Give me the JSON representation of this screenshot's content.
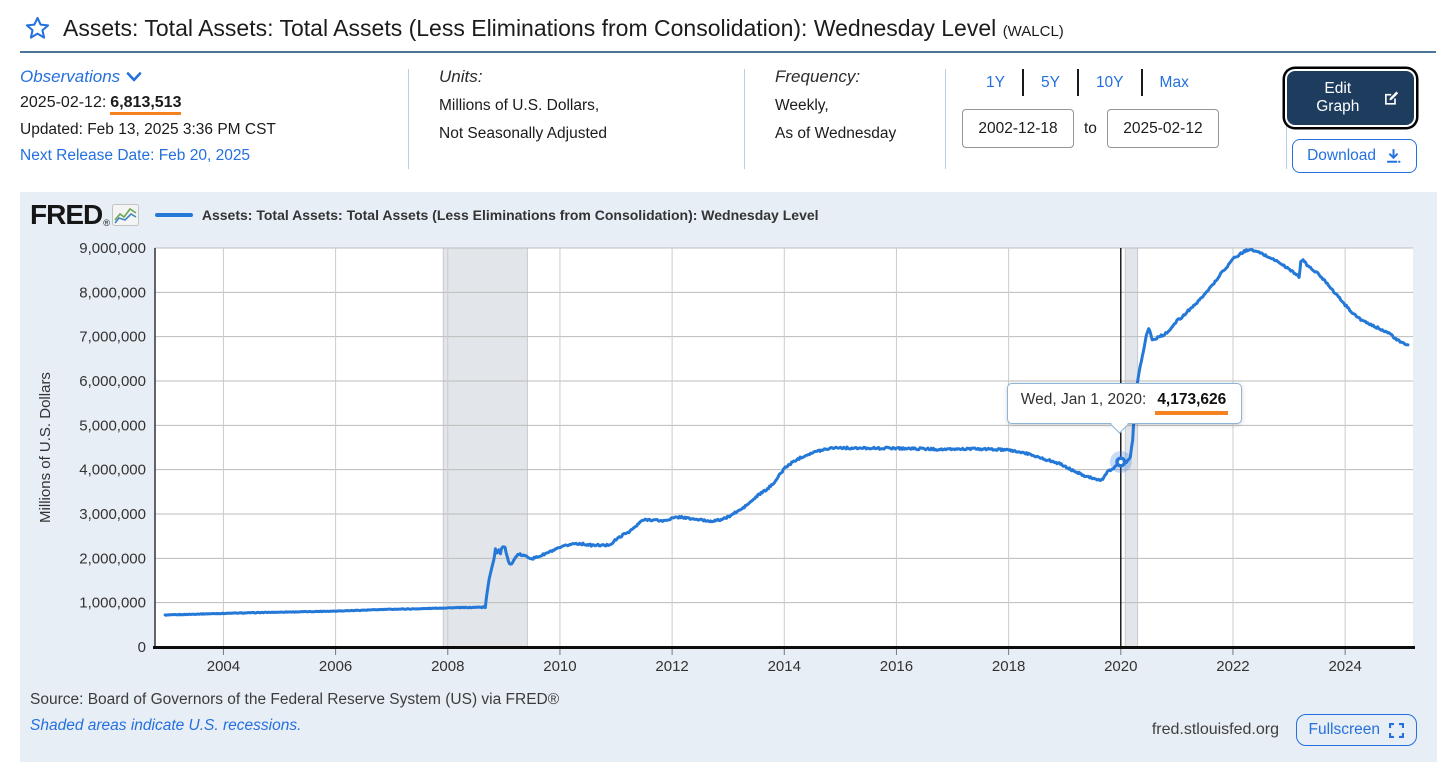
{
  "header": {
    "title": "Assets: Total Assets: Total Assets (Less Eliminations from Consolidation): Wednesday Level",
    "series_code": "(WALCL)"
  },
  "info": {
    "observations": {
      "label": "Observations",
      "latest_date": "2025-02-12:",
      "latest_value": "6,813,513",
      "updated": "Updated: Feb 13, 2025 3:36 PM CST",
      "next_release": "Next Release Date: Feb 20, 2025"
    },
    "units": {
      "label": "Units:",
      "line1": "Millions of U.S. Dollars,",
      "line2": "Not Seasonally Adjusted"
    },
    "frequency": {
      "label": "Frequency:",
      "line1": "Weekly,",
      "line2": "As of Wednesday"
    },
    "range": {
      "presets": [
        "1Y",
        "5Y",
        "10Y",
        "Max"
      ],
      "start_date": "2002-12-18",
      "to_label": "to",
      "end_date": "2025-02-12"
    },
    "actions": {
      "edit_graph": "Edit Graph",
      "download": "Download"
    }
  },
  "chart": {
    "brand": "FRED",
    "brand_reg": "®",
    "legend": "Assets: Total Assets: Total Assets (Less Eliminations from Consolidation): Wednesday Level",
    "tooltip": {
      "date_label": "Wed, Jan 1, 2020:",
      "value": "4,173,626",
      "x_year": 2020.0,
      "y_value": 4173626
    }
  },
  "footer": {
    "source": "Source: Board of Governors of the Federal Reserve System (US) via FRED®",
    "note": "Shaded areas indicate U.S. recessions.",
    "site": "fred.stlouisfed.org",
    "fullscreen": "Fullscreen"
  },
  "colors": {
    "accent_blue": "#2470de",
    "line_blue": "#2478d7",
    "orange_underline": "#f5811f",
    "dark_navy_button": "#1e3c5e",
    "panel_bg": "#e8eef6",
    "recession_gray": "#e2e5e9",
    "grid_gray": "#bcbcbc",
    "header_rule": "#4d7396"
  },
  "chart_data": {
    "type": "line",
    "title": "Assets: Total Assets: Total Assets (Less Eliminations from Consolidation): Wednesday Level",
    "xlabel": "",
    "ylabel": "Millions of U.S. Dollars",
    "xlim": [
      2002.78,
      2025.21
    ],
    "ylim": [
      0,
      9000000
    ],
    "grid": true,
    "legend_position": "top",
    "x_ticks": [
      2004,
      2006,
      2008,
      2010,
      2012,
      2014,
      2016,
      2018,
      2020,
      2022,
      2024
    ],
    "x_tick_labels": [
      "2004",
      "2006",
      "2008",
      "2010",
      "2012",
      "2014",
      "2016",
      "2018",
      "2020",
      "2022",
      "2024"
    ],
    "y_ticks": [
      0,
      1000000,
      2000000,
      3000000,
      4000000,
      5000000,
      6000000,
      7000000,
      8000000,
      9000000
    ],
    "y_tick_labels": [
      "0",
      "1,000,000",
      "2,000,000",
      "3,000,000",
      "4,000,000",
      "5,000,000",
      "6,000,000",
      "7,000,000",
      "8,000,000",
      "9,000,000"
    ],
    "recessions": [
      [
        2007.92,
        2009.42
      ],
      [
        2020.08,
        2020.3
      ]
    ],
    "hover_point": {
      "x": 2020.0,
      "y": 4173626
    },
    "series": [
      {
        "name": "WALCL",
        "points": [
          [
            2002.96,
            719000
          ],
          [
            2003.3,
            733000
          ],
          [
            2003.6,
            745000
          ],
          [
            2004.0,
            758000
          ],
          [
            2004.5,
            772000
          ],
          [
            2005.0,
            786000
          ],
          [
            2005.5,
            797000
          ],
          [
            2006.0,
            811000
          ],
          [
            2006.5,
            831000
          ],
          [
            2007.0,
            852000
          ],
          [
            2007.5,
            862000
          ],
          [
            2008.0,
            884000
          ],
          [
            2008.45,
            892000
          ],
          [
            2008.67,
            905000
          ],
          [
            2008.7,
            1214000
          ],
          [
            2008.74,
            1530000
          ],
          [
            2008.78,
            1773000
          ],
          [
            2008.82,
            1970000
          ],
          [
            2008.85,
            2214000
          ],
          [
            2008.88,
            2120000
          ],
          [
            2008.91,
            2190000
          ],
          [
            2008.94,
            2112000
          ],
          [
            2008.97,
            2259000
          ],
          [
            2009.02,
            2230000
          ],
          [
            2009.06,
            2020000
          ],
          [
            2009.1,
            1900000
          ],
          [
            2009.14,
            1882000
          ],
          [
            2009.18,
            1950000
          ],
          [
            2009.23,
            2070000
          ],
          [
            2009.29,
            2082000
          ],
          [
            2009.37,
            2055000
          ],
          [
            2009.45,
            2020000
          ],
          [
            2009.52,
            1998000
          ],
          [
            2009.6,
            2030000
          ],
          [
            2009.7,
            2082000
          ],
          [
            2009.8,
            2135000
          ],
          [
            2009.9,
            2186000
          ],
          [
            2010.0,
            2237000
          ],
          [
            2010.12,
            2292000
          ],
          [
            2010.25,
            2332000
          ],
          [
            2010.35,
            2333000
          ],
          [
            2010.47,
            2312000
          ],
          [
            2010.58,
            2292000
          ],
          [
            2010.7,
            2298000
          ],
          [
            2010.82,
            2290000
          ],
          [
            2010.92,
            2332000
          ],
          [
            2011.0,
            2423000
          ],
          [
            2011.12,
            2527000
          ],
          [
            2011.25,
            2616000
          ],
          [
            2011.37,
            2736000
          ],
          [
            2011.46,
            2853000
          ],
          [
            2011.56,
            2874000
          ],
          [
            2011.7,
            2862000
          ],
          [
            2011.85,
            2842000
          ],
          [
            2012.0,
            2903000
          ],
          [
            2012.15,
            2935000
          ],
          [
            2012.3,
            2898000
          ],
          [
            2012.5,
            2867000
          ],
          [
            2012.65,
            2842000
          ],
          [
            2012.8,
            2852000
          ],
          [
            2012.95,
            2902000
          ],
          [
            2013.1,
            3010000
          ],
          [
            2013.25,
            3120000
          ],
          [
            2013.4,
            3270000
          ],
          [
            2013.55,
            3440000
          ],
          [
            2013.7,
            3560000
          ],
          [
            2013.85,
            3760000
          ],
          [
            2014.0,
            4030000
          ],
          [
            2014.15,
            4170000
          ],
          [
            2014.3,
            4280000
          ],
          [
            2014.45,
            4360000
          ],
          [
            2014.6,
            4420000
          ],
          [
            2014.75,
            4470000
          ],
          [
            2014.9,
            4500000
          ],
          [
            2015.1,
            4490000
          ],
          [
            2015.3,
            4480000
          ],
          [
            2015.5,
            4490000
          ],
          [
            2015.7,
            4480000
          ],
          [
            2015.9,
            4490000
          ],
          [
            2016.1,
            4480000
          ],
          [
            2016.3,
            4475000
          ],
          [
            2016.5,
            4470000
          ],
          [
            2016.7,
            4460000
          ],
          [
            2016.9,
            4455000
          ],
          [
            2017.1,
            4465000
          ],
          [
            2017.3,
            4470000
          ],
          [
            2017.5,
            4465000
          ],
          [
            2017.7,
            4460000
          ],
          [
            2017.85,
            4450000
          ],
          [
            2018.0,
            4440000
          ],
          [
            2018.15,
            4410000
          ],
          [
            2018.3,
            4370000
          ],
          [
            2018.45,
            4320000
          ],
          [
            2018.6,
            4250000
          ],
          [
            2018.75,
            4200000
          ],
          [
            2018.9,
            4140000
          ],
          [
            2019.05,
            4040000
          ],
          [
            2019.2,
            3950000
          ],
          [
            2019.35,
            3870000
          ],
          [
            2019.5,
            3810000
          ],
          [
            2019.62,
            3762000
          ],
          [
            2019.68,
            3770000
          ],
          [
            2019.72,
            3880000
          ],
          [
            2019.78,
            3970000
          ],
          [
            2019.85,
            4020000
          ],
          [
            2019.93,
            4095000
          ],
          [
            2020.0,
            4173626
          ],
          [
            2020.1,
            4170000
          ],
          [
            2020.17,
            4290000
          ],
          [
            2020.21,
            4668000
          ],
          [
            2020.24,
            5254000
          ],
          [
            2020.28,
            5811000
          ],
          [
            2020.31,
            6083000
          ],
          [
            2020.35,
            6368000
          ],
          [
            2020.4,
            6656000
          ],
          [
            2020.44,
            6934000
          ],
          [
            2020.47,
            7097000
          ],
          [
            2020.5,
            7169000
          ],
          [
            2020.53,
            7084000
          ],
          [
            2020.56,
            6921000
          ],
          [
            2020.62,
            6957000
          ],
          [
            2020.7,
            7010000
          ],
          [
            2020.78,
            7056000
          ],
          [
            2020.86,
            7129000
          ],
          [
            2020.94,
            7243000
          ],
          [
            2021.0,
            7363000
          ],
          [
            2021.1,
            7444000
          ],
          [
            2021.2,
            7585000
          ],
          [
            2021.3,
            7693000
          ],
          [
            2021.4,
            7816000
          ],
          [
            2021.5,
            7983000
          ],
          [
            2021.6,
            8108000
          ],
          [
            2021.7,
            8275000
          ],
          [
            2021.8,
            8448000
          ],
          [
            2021.9,
            8591000
          ],
          [
            2022.0,
            8757000
          ],
          [
            2022.1,
            8840000
          ],
          [
            2022.2,
            8920000
          ],
          [
            2022.28,
            8965000
          ],
          [
            2022.38,
            8935000
          ],
          [
            2022.5,
            8880000
          ],
          [
            2022.62,
            8805000
          ],
          [
            2022.74,
            8735000
          ],
          [
            2022.85,
            8650000
          ],
          [
            2022.95,
            8565000
          ],
          [
            2023.05,
            8480000
          ],
          [
            2023.13,
            8400000
          ],
          [
            2023.18,
            8342000
          ],
          [
            2023.21,
            8690000
          ],
          [
            2023.25,
            8733000
          ],
          [
            2023.32,
            8612000
          ],
          [
            2023.4,
            8532000
          ],
          [
            2023.5,
            8440000
          ],
          [
            2023.6,
            8310000
          ],
          [
            2023.7,
            8180000
          ],
          [
            2023.8,
            8010000
          ],
          [
            2023.9,
            7870000
          ],
          [
            2024.0,
            7720000
          ],
          [
            2024.1,
            7580000
          ],
          [
            2024.2,
            7460000
          ],
          [
            2024.3,
            7370000
          ],
          [
            2024.4,
            7300000
          ],
          [
            2024.5,
            7240000
          ],
          [
            2024.62,
            7180000
          ],
          [
            2024.72,
            7120000
          ],
          [
            2024.82,
            7045000
          ],
          [
            2024.9,
            6950000
          ],
          [
            2025.0,
            6865000
          ],
          [
            2025.12,
            6813513
          ]
        ]
      }
    ]
  }
}
